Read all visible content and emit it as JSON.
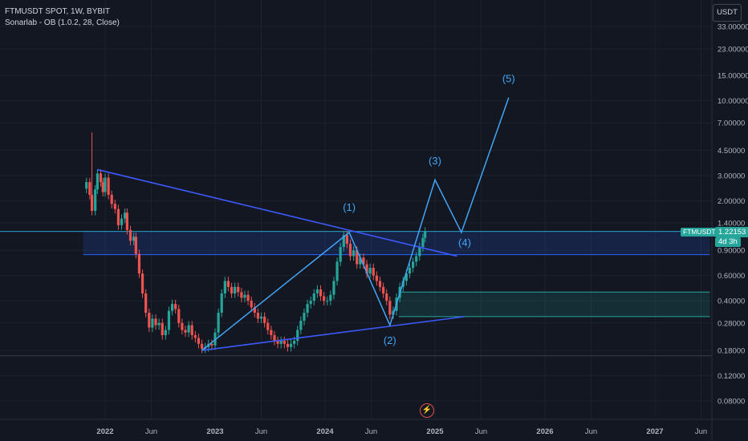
{
  "header": {
    "title": "FTMUSDT SPOT, 1W, BYBIT",
    "indicator": "Sonarlab - OB (1.0.2, 28, Close)",
    "currency": "USDT"
  },
  "last_price": {
    "ticker": "FTMUSDT",
    "value": "1.22153",
    "countdown": "4d 3h"
  },
  "colors": {
    "background": "#131722",
    "up": "#26a69a",
    "down": "#ef5350",
    "trendline": "#3d5afe",
    "projection": "#42a5f5",
    "ob_blue": "#2962ff",
    "ob_green": "#26a69a"
  },
  "chart_data": {
    "type": "candlestick",
    "title": "FTMUSDT SPOT, 1W, BYBIT",
    "y_scale": "log",
    "y_ticks": [
      {
        "v": 33,
        "label": "33.00000"
      },
      {
        "v": 23,
        "label": "23.00000"
      },
      {
        "v": 15,
        "label": "15.00000"
      },
      {
        "v": 10,
        "label": "10.00000"
      },
      {
        "v": 7,
        "label": "7.00000"
      },
      {
        "v": 4.5,
        "label": "4.50000"
      },
      {
        "v": 3,
        "label": "3.00000"
      },
      {
        "v": 2,
        "label": "2.00000"
      },
      {
        "v": 1.4,
        "label": "1.40000"
      },
      {
        "v": 0.9,
        "label": "0.90000"
      },
      {
        "v": 0.6,
        "label": "0.60000"
      },
      {
        "v": 0.4,
        "label": "0.40000"
      },
      {
        "v": 0.28,
        "label": "0.28000"
      },
      {
        "v": 0.18,
        "label": "0.18000"
      },
      {
        "v": 0.12,
        "label": "0.12000"
      },
      {
        "v": 0.08,
        "label": "0.08000"
      }
    ],
    "x_ticks": [
      {
        "t": 2022.0,
        "label": "2022",
        "bold": true
      },
      {
        "t": 2022.42,
        "label": "Jun",
        "bold": false
      },
      {
        "t": 2023.0,
        "label": "2023",
        "bold": true
      },
      {
        "t": 2023.42,
        "label": "Jun",
        "bold": false
      },
      {
        "t": 2024.0,
        "label": "2024",
        "bold": true
      },
      {
        "t": 2024.42,
        "label": "Jun",
        "bold": false
      },
      {
        "t": 2025.0,
        "label": "2025",
        "bold": true
      },
      {
        "t": 2025.42,
        "label": "Jun",
        "bold": false
      },
      {
        "t": 2026.0,
        "label": "2026",
        "bold": true
      },
      {
        "t": 2026.42,
        "label": "Jun",
        "bold": false
      },
      {
        "t": 2027.0,
        "label": "2027",
        "bold": true
      },
      {
        "t": 2027.42,
        "label": "Jun",
        "bold": false
      }
    ],
    "price_path": [
      [
        2021.83,
        2.7
      ],
      [
        2021.86,
        2.2
      ],
      [
        2021.88,
        1.7
      ],
      [
        2021.91,
        2.4
      ],
      [
        2021.93,
        3.1
      ],
      [
        2021.96,
        2.7
      ],
      [
        2021.98,
        2.3
      ],
      [
        2022.0,
        2.9
      ],
      [
        2022.03,
        2.2
      ],
      [
        2022.06,
        1.9
      ],
      [
        2022.09,
        1.75
      ],
      [
        2022.12,
        1.35
      ],
      [
        2022.15,
        1.5
      ],
      [
        2022.18,
        1.65
      ],
      [
        2022.2,
        1.25
      ],
      [
        2022.23,
        1.05
      ],
      [
        2022.26,
        1.12
      ],
      [
        2022.28,
        0.85
      ],
      [
        2022.31,
        0.62
      ],
      [
        2022.34,
        0.45
      ],
      [
        2022.37,
        0.33
      ],
      [
        2022.4,
        0.26
      ],
      [
        2022.43,
        0.3
      ],
      [
        2022.46,
        0.27
      ],
      [
        2022.49,
        0.28
      ],
      [
        2022.52,
        0.23
      ],
      [
        2022.55,
        0.25
      ],
      [
        2022.58,
        0.34
      ],
      [
        2022.61,
        0.38
      ],
      [
        2022.64,
        0.35
      ],
      [
        2022.67,
        0.28
      ],
      [
        2022.7,
        0.25
      ],
      [
        2022.73,
        0.24
      ],
      [
        2022.76,
        0.27
      ],
      [
        2022.79,
        0.23
      ],
      [
        2022.82,
        0.22
      ],
      [
        2022.85,
        0.2
      ],
      [
        2022.88,
        0.185
      ],
      [
        2022.91,
        0.19
      ],
      [
        2022.94,
        0.2
      ],
      [
        2022.97,
        0.195
      ],
      [
        2023.0,
        0.24
      ],
      [
        2023.03,
        0.33
      ],
      [
        2023.06,
        0.45
      ],
      [
        2023.09,
        0.55
      ],
      [
        2023.12,
        0.5
      ],
      [
        2023.15,
        0.45
      ],
      [
        2023.18,
        0.5
      ],
      [
        2023.21,
        0.46
      ],
      [
        2023.24,
        0.42
      ],
      [
        2023.27,
        0.44
      ],
      [
        2023.3,
        0.4
      ],
      [
        2023.33,
        0.36
      ],
      [
        2023.36,
        0.33
      ],
      [
        2023.39,
        0.3
      ],
      [
        2023.42,
        0.31
      ],
      [
        2023.45,
        0.28
      ],
      [
        2023.48,
        0.25
      ],
      [
        2023.51,
        0.23
      ],
      [
        2023.54,
        0.21
      ],
      [
        2023.57,
        0.2
      ],
      [
        2023.6,
        0.21
      ],
      [
        2023.63,
        0.2
      ],
      [
        2023.66,
        0.19
      ],
      [
        2023.69,
        0.2
      ],
      [
        2023.72,
        0.21
      ],
      [
        2023.75,
        0.25
      ],
      [
        2023.78,
        0.29
      ],
      [
        2023.81,
        0.33
      ],
      [
        2023.84,
        0.38
      ],
      [
        2023.87,
        0.4
      ],
      [
        2023.9,
        0.45
      ],
      [
        2023.93,
        0.48
      ],
      [
        2023.96,
        0.43
      ],
      [
        2023.99,
        0.4
      ],
      [
        2024.02,
        0.4
      ],
      [
        2024.05,
        0.44
      ],
      [
        2024.08,
        0.55
      ],
      [
        2024.11,
        0.75
      ],
      [
        2024.14,
        0.95
      ],
      [
        2024.17,
        1.15
      ],
      [
        2024.2,
        1.0
      ],
      [
        2024.23,
        0.82
      ],
      [
        2024.26,
        0.9
      ],
      [
        2024.29,
        0.72
      ],
      [
        2024.32,
        0.8
      ],
      [
        2024.35,
        0.72
      ],
      [
        2024.38,
        0.62
      ],
      [
        2024.41,
        0.68
      ],
      [
        2024.44,
        0.6
      ],
      [
        2024.47,
        0.55
      ],
      [
        2024.5,
        0.5
      ],
      [
        2024.53,
        0.45
      ],
      [
        2024.56,
        0.4
      ],
      [
        2024.59,
        0.32
      ],
      [
        2024.62,
        0.34
      ],
      [
        2024.65,
        0.42
      ],
      [
        2024.68,
        0.5
      ],
      [
        2024.71,
        0.55
      ],
      [
        2024.74,
        0.62
      ],
      [
        2024.77,
        0.68
      ],
      [
        2024.8,
        0.75
      ],
      [
        2024.83,
        0.82
      ],
      [
        2024.86,
        0.95
      ],
      [
        2024.89,
        1.1
      ],
      [
        2024.91,
        1.22
      ]
    ],
    "trendlines": [
      {
        "name": "upper-trendline",
        "from": [
          2021.93,
          3.3
        ],
        "to": [
          2025.2,
          0.82
        ]
      },
      {
        "name": "lower-trendline",
        "from": [
          2022.88,
          0.18
        ],
        "to": [
          2025.27,
          0.31
        ]
      }
    ],
    "wave_path": [
      [
        2022.88,
        0.18
      ],
      [
        2024.22,
        1.2
      ],
      [
        2024.59,
        0.27
      ],
      [
        2025.0,
        2.8
      ],
      [
        2025.24,
        1.2
      ],
      [
        2025.67,
        10.5
      ]
    ],
    "wave_labels": [
      {
        "text": "(1)",
        "t": 2024.22,
        "v": 1.7
      },
      {
        "text": "(2)",
        "t": 2024.59,
        "v": 0.2
      },
      {
        "text": "(3)",
        "t": 2025.0,
        "v": 3.6
      },
      {
        "text": "(4)",
        "t": 2025.27,
        "v": 0.96
      },
      {
        "text": "(5)",
        "t": 2025.67,
        "v": 13.5
      }
    ],
    "order_blocks": [
      {
        "name": "ob-upper",
        "t0": 2021.8,
        "t1": 2027.5,
        "v0": 0.84,
        "v1": 1.22,
        "color": "#2962ff",
        "edge_top_full": true
      },
      {
        "name": "ob-lower",
        "t0": 2024.67,
        "t1": 2027.5,
        "v0": 0.31,
        "v1": 0.46,
        "color": "#26a69a",
        "edge_top_full": false
      }
    ],
    "horizontal_lines": [
      {
        "name": "last-price-line",
        "v": 1.22153,
        "color": "#26a69a"
      },
      {
        "name": "low-line",
        "v": 0.165,
        "color": "#434651"
      }
    ]
  }
}
